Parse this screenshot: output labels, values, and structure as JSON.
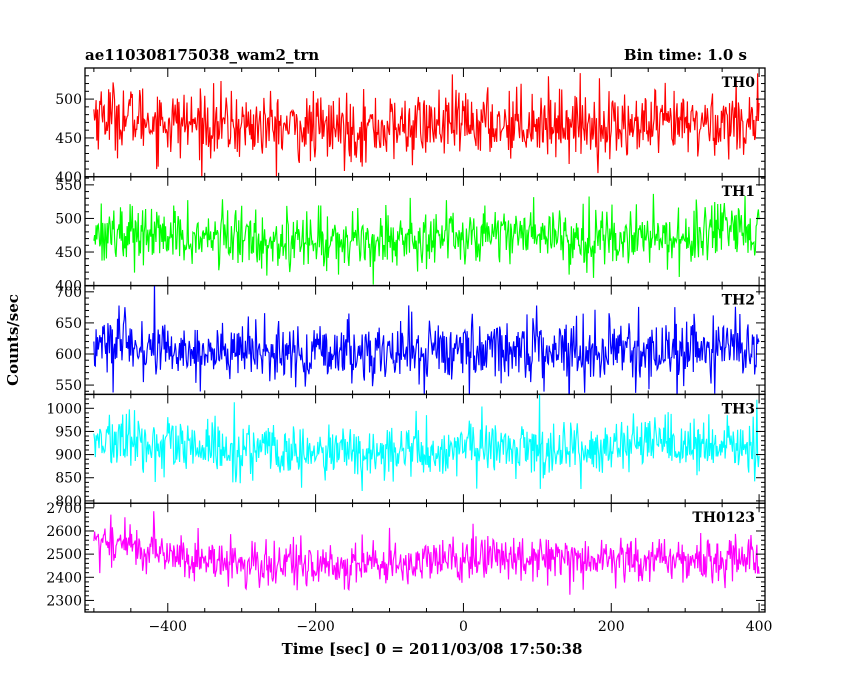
{
  "chart_data": {
    "type": "line",
    "title": "ae110308175038_wam2_trn",
    "subtitle": "Bin time: 1.0 s",
    "xlabel": "Time [sec] 0 = 2011/03/08 17:50:38",
    "ylabel": "Counts/sec",
    "xlim": [
      -512,
      408
    ],
    "x_ticks": [
      -400,
      -200,
      0,
      200,
      400
    ],
    "grid": false,
    "panels": [
      {
        "name": "TH0",
        "color": "#ff0000",
        "ylim": [
          400,
          540
        ],
        "yticks": [
          400,
          450,
          500
        ],
        "x": [
          -500,
          -450,
          -400,
          -350,
          -300,
          -250,
          -200,
          -150,
          -100,
          -50,
          0,
          50,
          100,
          150,
          200,
          250,
          300,
          350,
          400
        ],
        "values": [
          482,
          476,
          470,
          468,
          466,
          463,
          462,
          463,
          462,
          466,
          468,
          469,
          471,
          469,
          466,
          464,
          467,
          470,
          475
        ]
      },
      {
        "name": "TH1",
        "color": "#00ff00",
        "ylim": [
          400,
          562
        ],
        "yticks": [
          400,
          450,
          500,
          550
        ],
        "x": [
          -500,
          -450,
          -400,
          -350,
          -300,
          -250,
          -200,
          -150,
          -100,
          -50,
          0,
          50,
          100,
          150,
          200,
          250,
          300,
          350,
          400
        ],
        "values": [
          482,
          478,
          472,
          470,
          472,
          468,
          466,
          467,
          470,
          472,
          475,
          480,
          478,
          474,
          470,
          472,
          474,
          476,
          478
        ]
      },
      {
        "name": "TH2",
        "color": "#0000ff",
        "ylim": [
          535,
          710
        ],
        "yticks": [
          550,
          600,
          650,
          700
        ],
        "x": [
          -500,
          -450,
          -400,
          -350,
          -300,
          -250,
          -200,
          -150,
          -100,
          -50,
          0,
          50,
          100,
          150,
          200,
          250,
          300,
          350,
          400
        ],
        "values": [
          618,
          612,
          606,
          604,
          602,
          600,
          599,
          601,
          603,
          606,
          606,
          608,
          610,
          608,
          605,
          604,
          606,
          607,
          612
        ]
      },
      {
        "name": "TH3",
        "color": "#00ffff",
        "ylim": [
          795,
          1030
        ],
        "yticks": [
          800,
          850,
          900,
          950,
          1000
        ],
        "x": [
          -500,
          -450,
          -400,
          -350,
          -300,
          -250,
          -200,
          -150,
          -100,
          -50,
          0,
          50,
          100,
          150,
          200,
          250,
          300,
          350,
          400
        ],
        "values": [
          934,
          925,
          915,
          910,
          912,
          905,
          900,
          903,
          905,
          906,
          912,
          914,
          915,
          913,
          915,
          918,
          918,
          915,
          918
        ]
      },
      {
        "name": "TH0123",
        "color": "#ff00ff",
        "ylim": [
          2250,
          2720
        ],
        "yticks": [
          2300,
          2400,
          2500,
          2600,
          2700
        ],
        "x": [
          -500,
          -450,
          -400,
          -350,
          -300,
          -250,
          -200,
          -150,
          -100,
          -50,
          0,
          50,
          100,
          150,
          200,
          250,
          300,
          350,
          400
        ],
        "values": [
          2560,
          2540,
          2500,
          2470,
          2460,
          2450,
          2450,
          2455,
          2460,
          2465,
          2480,
          2485,
          2495,
          2490,
          2480,
          2470,
          2475,
          2480,
          2485
        ]
      }
    ]
  }
}
